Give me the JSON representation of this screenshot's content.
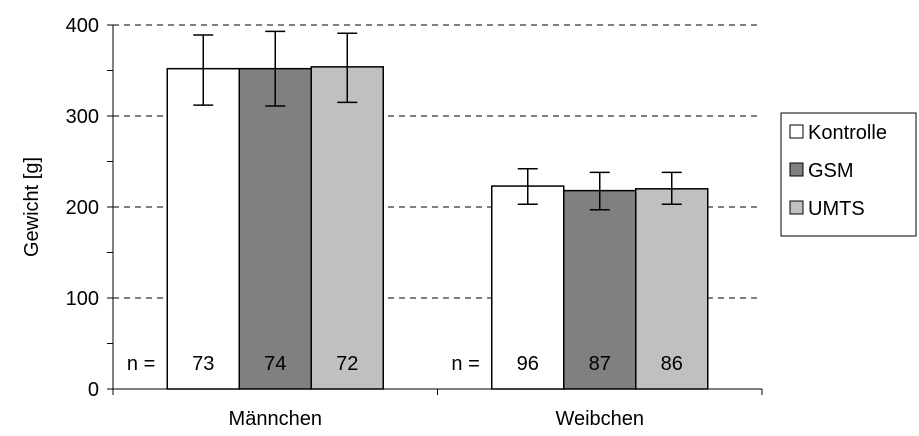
{
  "chart_data": {
    "type": "bar",
    "categories": [
      "Männchen",
      "Weibchen"
    ],
    "series": [
      {
        "name": "Kontrolle",
        "values": [
          352,
          223
        ],
        "err_low": [
          312,
          203
        ],
        "err_high": [
          389,
          242
        ],
        "n": [
          "73",
          "96"
        ]
      },
      {
        "name": "GSM",
        "values": [
          352,
          218
        ],
        "err_low": [
          311,
          197
        ],
        "err_high": [
          393,
          238
        ],
        "n": [
          "74",
          "87"
        ]
      },
      {
        "name": "UMTS",
        "values": [
          354,
          220
        ],
        "err_low": [
          315,
          203
        ],
        "err_high": [
          391,
          238
        ],
        "n": [
          "72",
          "86"
        ]
      }
    ],
    "ylabel": "Gewicht [g]",
    "ylim": [
      0,
      400
    ],
    "yticks": [
      0,
      100,
      200,
      300,
      400
    ],
    "grid": "dashed horizontal",
    "legend": "right",
    "n_prefix": "n =",
    "colors": {
      "Kontrolle": "#ffffff",
      "GSM": "#808080",
      "UMTS": "#c0c0c0"
    }
  }
}
